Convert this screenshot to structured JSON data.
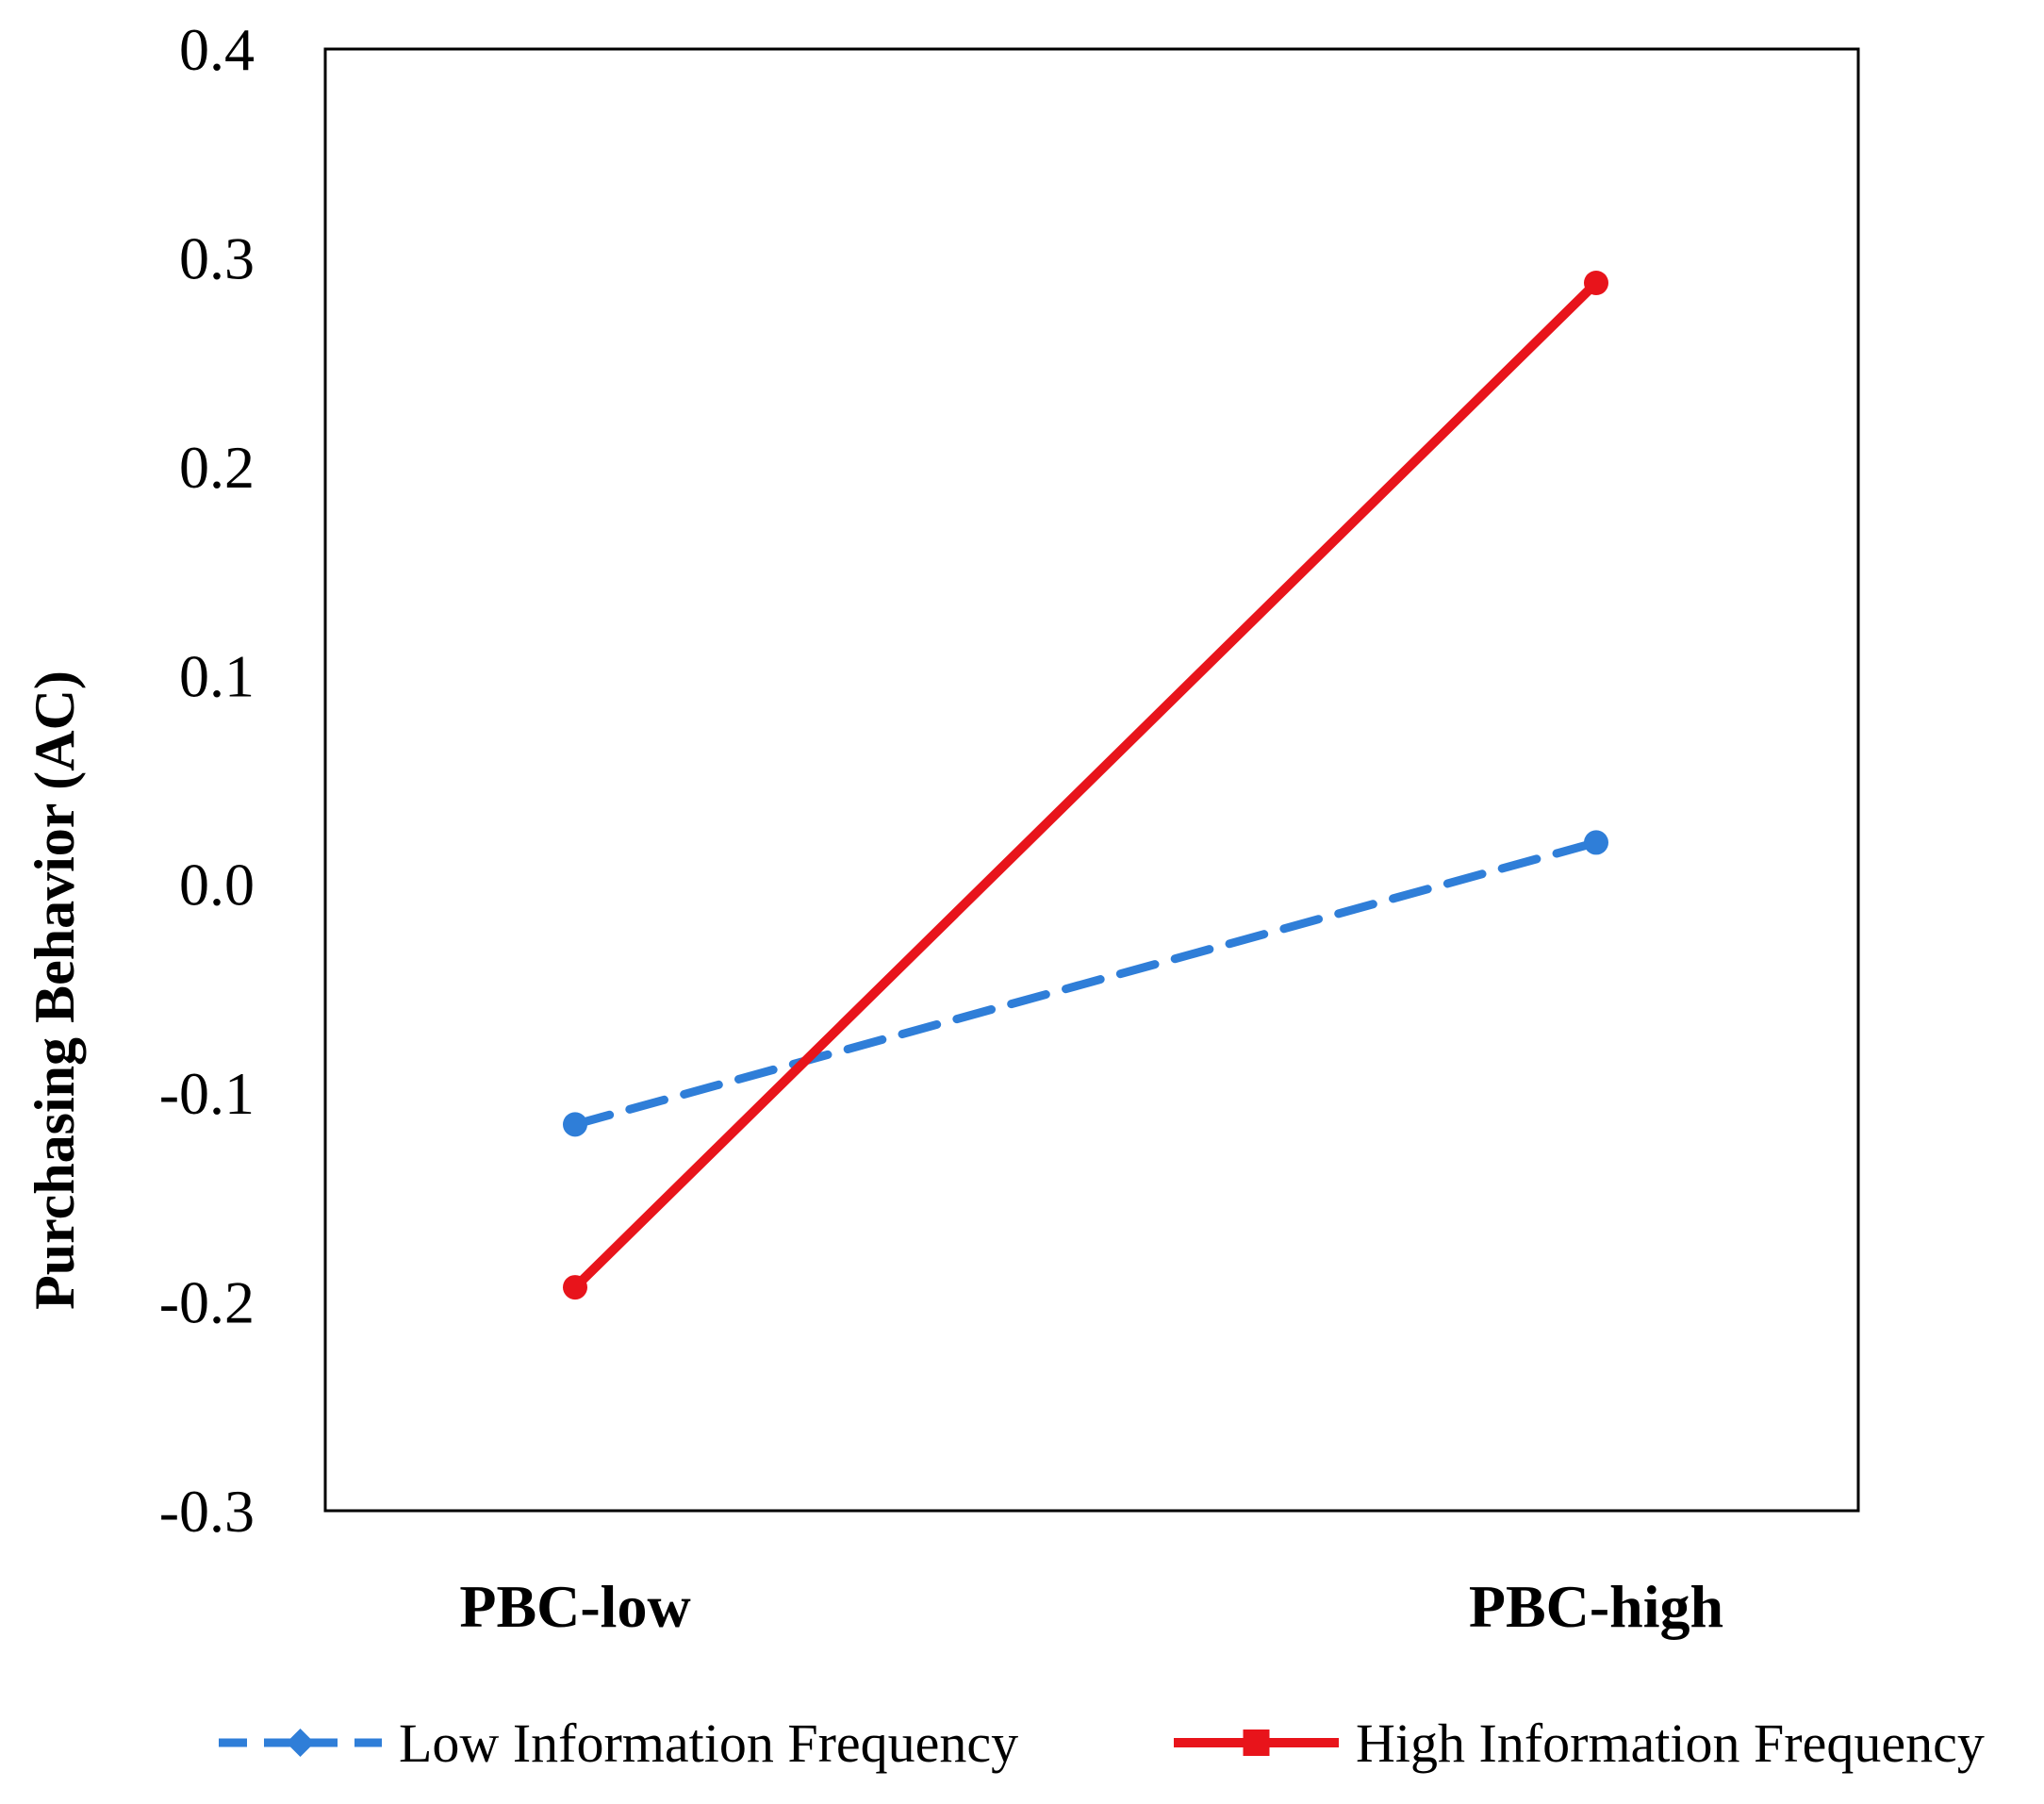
{
  "chart_data": {
    "type": "line",
    "title": "",
    "xlabel": "",
    "ylabel": "Purchasing Behavior (AC)",
    "categories": [
      "PBC-low",
      "PBC-high"
    ],
    "ylim": [
      -0.3,
      0.4
    ],
    "yticks": [
      "0.4",
      "0.3",
      "0.2",
      "0.1",
      "0.0",
      "-0.1",
      "-0.2",
      "-0.3"
    ],
    "ytick_values": [
      0.4,
      0.3,
      0.2,
      0.1,
      0.0,
      -0.1,
      -0.2,
      -0.3
    ],
    "grid": false,
    "legend_position": "bottom",
    "series": [
      {
        "name": "Low Information Frequency",
        "values": [
          -0.115,
          0.02
        ],
        "color": "#2F7ED8",
        "line_style": "dashed",
        "marker": "diamond"
      },
      {
        "name": "High Information Frequency",
        "values": [
          -0.193,
          0.288
        ],
        "color": "#E8141B",
        "line_style": "solid",
        "marker": "square"
      }
    ]
  }
}
